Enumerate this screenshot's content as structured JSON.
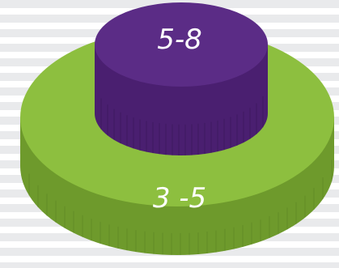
{
  "tiers": [
    {
      "label": "3 -5",
      "color_top": "#8dbf3f",
      "color_side": "#6e9a2c",
      "color_side_dark": "#5c8423"
    },
    {
      "label": "5-8",
      "color_top": "#5b2c86",
      "color_side": "#4a1f70",
      "color_side_dark": "#3b165b"
    }
  ],
  "background_stripe_colors": [
    "#e9eaec",
    "#ffffff"
  ]
}
